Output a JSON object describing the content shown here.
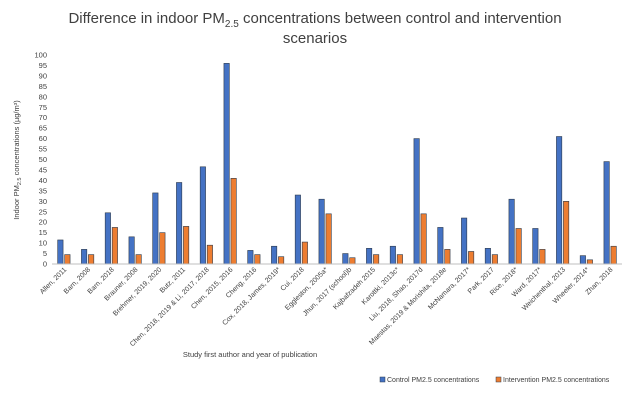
{
  "chart_data": {
    "type": "bar",
    "title_main": "Difference in indoor PM",
    "title_sub": "2.5",
    "title_rest": " concentrations between control and intervention",
    "title_line2": "scenarios",
    "ylabel_main": "Indoor PM",
    "ylabel_sub": "2.5",
    "ylabel_rest": " concentrations (µg/m³)",
    "xlabel": "Study first author and year of publication",
    "ylim": [
      0,
      100
    ],
    "ytick_step": 5,
    "grid": false,
    "legend_position": "bottom-right",
    "categories": [
      "Allen, 2011",
      "Barn, 2008",
      "Barn, 2018",
      "Brauner, 2008",
      "Brehmer, 2019, 2020",
      "Butz, 2011",
      "Chen, 2018, 2019 & Li, 2017, 2018",
      "Chen, 2015, 2016",
      "Cheng, 2016",
      "Cox, 2018, James, 2019*",
      "Cui, 2018",
      "Eggleston, 2005a*",
      "Jhun, 2017 (school)b",
      "Kajbafzadeh 2015",
      "Karottki, 2013c*",
      "Liu, 2018, Shao, 2017d",
      "Maestas, 2019 & Morishita, 2018e",
      "McNamara, 2017*",
      "Park, 2017",
      "Rice, 2018*",
      "Ward, 2017*",
      "Weichenthal, 2013",
      "Wheeler, 2014*",
      "Zhan, 2018"
    ],
    "series": [
      {
        "name": "Control PM2.5 concentrations",
        "color": "#4472c4",
        "values": [
          11.5,
          7,
          24.5,
          13,
          34,
          39,
          46.5,
          96,
          6.5,
          8.5,
          33,
          31,
          5,
          7.5,
          8.5,
          60,
          17.5,
          22,
          7.5,
          31,
          17,
          61,
          4,
          49
        ]
      },
      {
        "name": "Intervention PM2.5 concentrations",
        "color": "#ed7d31",
        "values": [
          4.5,
          4.5,
          17.5,
          4.5,
          15,
          18,
          9,
          41,
          4.5,
          3.5,
          10.5,
          24,
          3,
          4.5,
          4.5,
          24,
          7,
          6,
          4.5,
          17,
          7,
          30,
          2,
          8.5
        ]
      }
    ]
  }
}
